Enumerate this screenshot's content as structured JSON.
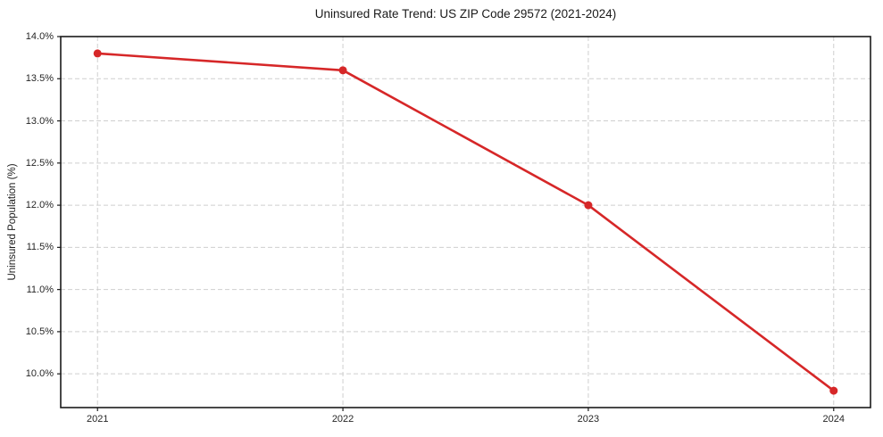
{
  "chart_data": {
    "type": "line",
    "title": "Uninsured Rate Trend: US ZIP Code 29572 (2021-2024)",
    "xlabel": "",
    "ylabel": "Uninsured Population (%)",
    "x": [
      2021,
      2022,
      2023,
      2024
    ],
    "series": [
      {
        "name": "Uninsured Population (%)",
        "values": [
          13.8,
          13.6,
          12.0,
          9.8
        ],
        "color": "#d62728",
        "marker": "circle",
        "line_width": 2.6,
        "marker_radius": 4.5
      }
    ],
    "xlim": [
      2020.85,
      2024.15
    ],
    "ylim": [
      9.6,
      14.0
    ],
    "xticks": [
      2021,
      2022,
      2023,
      2024
    ],
    "xtick_labels": [
      "2021",
      "2022",
      "2023",
      "2024"
    ],
    "yticks": [
      10.0,
      10.5,
      11.0,
      11.5,
      12.0,
      12.5,
      13.0,
      13.5,
      14.0
    ],
    "ytick_suffix": "%",
    "ytick_decimals": 1,
    "grid": true,
    "grid_style": "dashed",
    "legend": "none",
    "colors": {
      "background": "#ffffff",
      "grid": "#cfcfcf",
      "spine": "#1a1a1a",
      "tick_text": "#262626",
      "title_text": "#1a1a1a"
    }
  }
}
